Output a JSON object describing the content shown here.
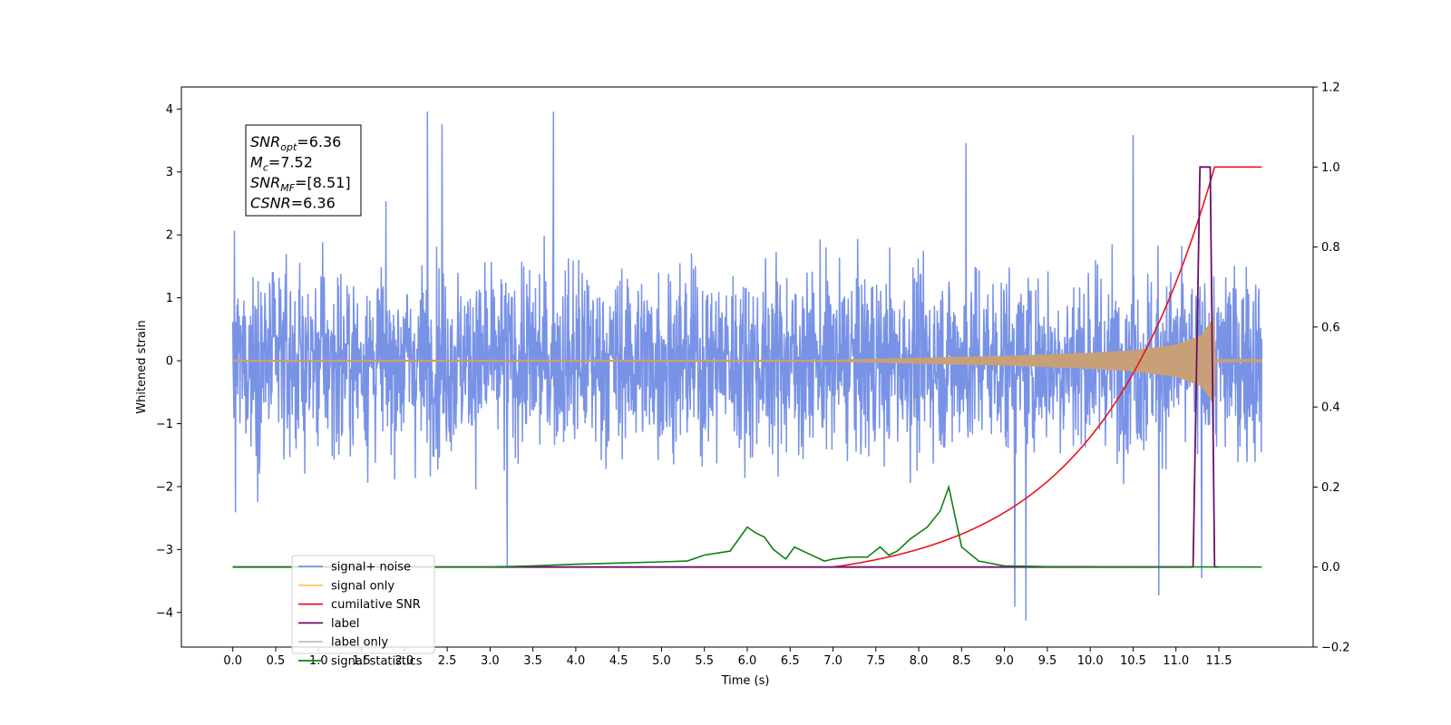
{
  "chart_data": {
    "type": "line",
    "xlabel": "Time (s)",
    "ylabel": "Whitened strain",
    "xlim": [
      -0.6,
      12.6
    ],
    "ylim": [
      -4.55,
      4.35
    ],
    "y2lim": [
      -0.2,
      1.2
    ],
    "x_ticks": [
      "0.0",
      "0.5",
      "1.0",
      "1.5",
      "2.0",
      "2.5",
      "3.0",
      "3.5",
      "4.0",
      "4.5",
      "5.0",
      "5.5",
      "6.0",
      "6.5",
      "7.0",
      "7.5",
      "8.0",
      "8.5",
      "9.0",
      "9.5",
      "10.0",
      "10.5",
      "11.0",
      "11.5"
    ],
    "y_ticks": [
      "4",
      "3",
      "2",
      "1",
      "0",
      "−1",
      "−2",
      "−3",
      "−4"
    ],
    "y2_ticks": [
      "1.2",
      "1.0",
      "0.8",
      "0.6",
      "0.4",
      "0.2",
      "0.0",
      "−0.2"
    ],
    "annotation": {
      "lines": [
        {
          "sym": "SNR",
          "sub": "opt",
          "val": "=6.36"
        },
        {
          "sym": "M",
          "sub": "c",
          "val": "=7.52"
        },
        {
          "sym": "SNR",
          "sub": "MF",
          "val": "=[8.51]"
        },
        {
          "sym": "CSNR",
          "sub": "",
          "val": "=6.36"
        }
      ]
    },
    "legend": {
      "placement": "lower-left",
      "entries": [
        "signal+ noise",
        "signal only",
        "cumilative SNR",
        "label",
        "label only",
        "signal statistics"
      ]
    },
    "series": [
      {
        "name": "signal+ noise",
        "axis": "left",
        "color": "#7892e6",
        "x_range": [
          0.0,
          12.0
        ],
        "noise_sigma": 0.72,
        "spikes": [
          [
            2.27,
            3.95
          ],
          [
            2.44,
            3.75
          ],
          [
            3.74,
            3.95
          ],
          [
            10.5,
            3.58
          ],
          [
            8.55,
            3.45
          ],
          [
            9.12,
            -3.9
          ],
          [
            9.25,
            -4.12
          ],
          [
            10.8,
            -3.72
          ],
          [
            11.3,
            -3.45
          ],
          [
            0.03,
            -2.4
          ],
          [
            3.2,
            -3.25
          ]
        ]
      },
      {
        "name": "signal only",
        "axis": "left",
        "color": "#c8a078",
        "x_range": [
          0.0,
          12.0
        ],
        "envelope": [
          [
            0.0,
            0.01
          ],
          [
            7.0,
            0.01
          ],
          [
            8.0,
            0.04
          ],
          [
            9.0,
            0.07
          ],
          [
            10.0,
            0.12
          ],
          [
            10.5,
            0.16
          ],
          [
            11.0,
            0.25
          ],
          [
            11.3,
            0.4
          ],
          [
            11.45,
            0.7
          ],
          [
            11.46,
            0.02
          ],
          [
            12.0,
            0.02
          ]
        ]
      },
      {
        "name": "cumilative SNR",
        "axis": "right",
        "color": "#e8141e",
        "x": [
          7.0,
          7.5,
          8.0,
          8.5,
          9.0,
          9.5,
          10.0,
          10.5,
          11.0,
          11.2,
          11.35,
          11.45,
          11.5,
          12.0
        ],
        "y": [
          0.0,
          0.01,
          0.05,
          0.11,
          0.19,
          0.28,
          0.39,
          0.53,
          0.71,
          0.8,
          0.9,
          0.99,
          1.0,
          1.0
        ]
      },
      {
        "name": "label",
        "axis": "right",
        "color": "#6b0f6b",
        "x": [
          0.0,
          11.2,
          11.28,
          11.4,
          11.45,
          11.5
        ],
        "y": [
          0.0,
          0.0,
          1.0,
          1.0,
          0.0,
          0.0
        ]
      },
      {
        "name": "signal statistics",
        "axis": "right",
        "color": "#138013",
        "x": [
          0.0,
          3.0,
          3.5,
          4.0,
          4.5,
          5.0,
          5.3,
          5.5,
          5.8,
          6.0,
          6.1,
          6.2,
          6.3,
          6.45,
          6.55,
          6.7,
          6.9,
          7.0,
          7.2,
          7.4,
          7.55,
          7.65,
          7.75,
          7.9,
          8.1,
          8.25,
          8.35,
          8.5,
          8.7,
          9.0,
          9.5,
          12.0
        ],
        "y": [
          0.0,
          0.0,
          0.003,
          0.007,
          0.01,
          0.013,
          0.015,
          0.03,
          0.04,
          0.1,
          0.085,
          0.075,
          0.045,
          0.02,
          0.05,
          0.035,
          0.015,
          0.02,
          0.025,
          0.025,
          0.05,
          0.03,
          0.04,
          0.07,
          0.1,
          0.14,
          0.2,
          0.05,
          0.015,
          0.003,
          0.001,
          0.0
        ]
      }
    ]
  }
}
